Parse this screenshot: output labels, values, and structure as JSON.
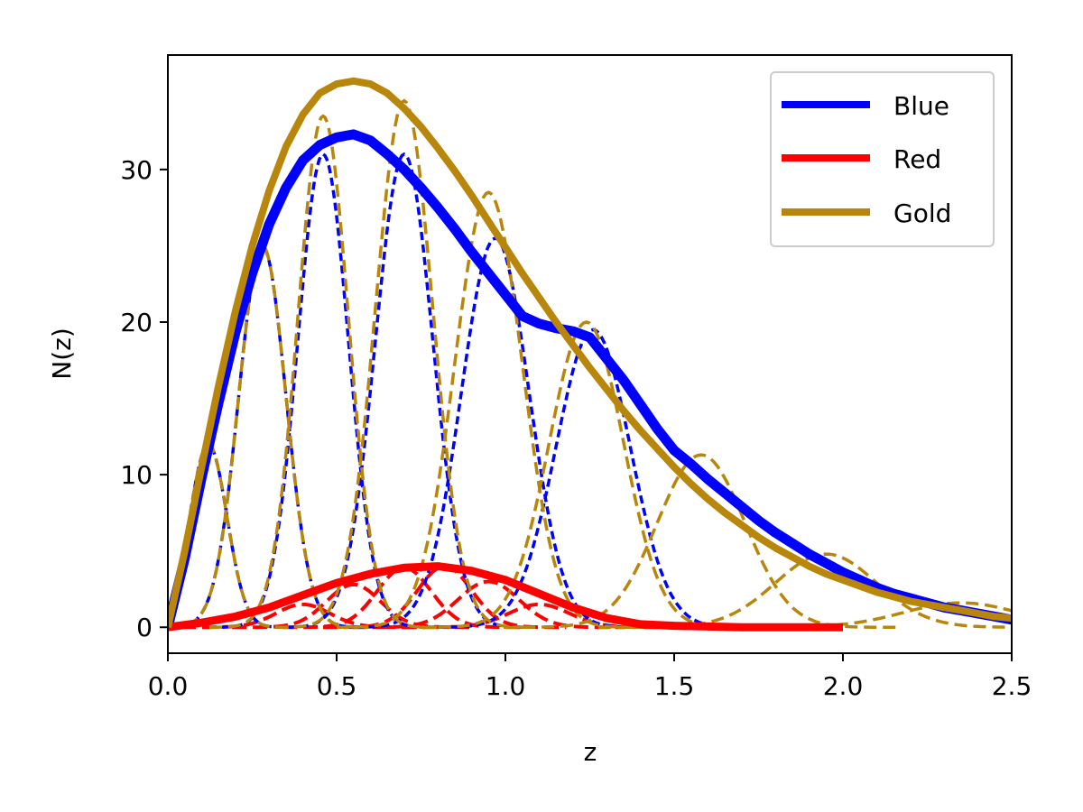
{
  "chart_data": {
    "type": "line",
    "xlabel": "z",
    "ylabel": "N(z)",
    "xlim": [
      0.0,
      2.5
    ],
    "ylim": [
      -1.7,
      37.5
    ],
    "x_ticks": [
      0.0,
      0.5,
      1.0,
      1.5,
      2.0,
      2.5
    ],
    "x_tick_labels": [
      "0.0",
      "0.5",
      "1.0",
      "1.5",
      "2.0",
      "2.5"
    ],
    "y_ticks": [
      0,
      10,
      20,
      30
    ],
    "y_tick_labels": [
      "0",
      "10",
      "20",
      "30"
    ],
    "grid": false,
    "legend_position": "top-right",
    "series": [
      {
        "name": "Blue",
        "color": "#0000ff",
        "style": "solid",
        "x": [
          0.0,
          0.05,
          0.1,
          0.15,
          0.2,
          0.25,
          0.3,
          0.35,
          0.4,
          0.45,
          0.5,
          0.55,
          0.6,
          0.65,
          0.7,
          0.75,
          0.8,
          0.85,
          0.9,
          0.95,
          1.0,
          1.05,
          1.1,
          1.15,
          1.2,
          1.25,
          1.3,
          1.35,
          1.4,
          1.45,
          1.5,
          1.55,
          1.6,
          1.65,
          1.7,
          1.75,
          1.8,
          1.85,
          1.9,
          1.95,
          2.0,
          2.05,
          2.1,
          2.15,
          2.2,
          2.25,
          2.3,
          2.35,
          2.4,
          2.45,
          2.5
        ],
        "y": [
          0.0,
          4.5,
          9.8,
          14.7,
          19.3,
          23.2,
          26.4,
          28.8,
          30.6,
          31.6,
          32.1,
          32.3,
          31.9,
          31.0,
          30.0,
          28.8,
          27.5,
          26.1,
          24.6,
          23.2,
          21.8,
          20.4,
          19.9,
          19.6,
          19.4,
          19.0,
          17.6,
          16.2,
          14.6,
          13.0,
          11.6,
          10.7,
          9.7,
          8.8,
          7.9,
          7.0,
          6.2,
          5.5,
          4.8,
          4.2,
          3.6,
          3.1,
          2.6,
          2.2,
          1.9,
          1.6,
          1.3,
          1.1,
          0.9,
          0.7,
          0.5
        ]
      },
      {
        "name": "Red",
        "color": "#ff0000",
        "style": "solid",
        "x": [
          0.0,
          0.1,
          0.2,
          0.3,
          0.4,
          0.5,
          0.6,
          0.7,
          0.8,
          0.9,
          1.0,
          1.1,
          1.2,
          1.3,
          1.4,
          1.5,
          1.6,
          1.7,
          1.8,
          1.9,
          2.0
        ],
        "y": [
          0.0,
          0.3,
          0.7,
          1.3,
          2.1,
          2.9,
          3.5,
          3.9,
          4.0,
          3.7,
          3.1,
          2.2,
          1.3,
          0.6,
          0.2,
          0.1,
          0.05,
          0.0,
          0.0,
          0.0,
          0.0
        ]
      },
      {
        "name": "Gold",
        "color": "#b8860b",
        "style": "solid",
        "x": [
          0.0,
          0.05,
          0.1,
          0.15,
          0.2,
          0.25,
          0.3,
          0.35,
          0.4,
          0.45,
          0.5,
          0.55,
          0.6,
          0.65,
          0.7,
          0.75,
          0.8,
          0.85,
          0.9,
          0.95,
          1.0,
          1.05,
          1.1,
          1.15,
          1.2,
          1.25,
          1.3,
          1.35,
          1.4,
          1.45,
          1.5,
          1.55,
          1.6,
          1.65,
          1.7,
          1.75,
          1.8,
          1.85,
          1.9,
          1.95,
          2.0,
          2.05,
          2.1,
          2.15,
          2.2,
          2.25,
          2.3,
          2.35,
          2.4,
          2.45,
          2.5
        ],
        "y": [
          0.0,
          5.0,
          10.5,
          15.8,
          20.7,
          25.0,
          28.6,
          31.5,
          33.6,
          35.0,
          35.6,
          35.8,
          35.6,
          35.0,
          34.0,
          32.8,
          31.4,
          29.9,
          28.3,
          26.6,
          24.9,
          23.2,
          21.6,
          20.0,
          18.5,
          17.0,
          15.6,
          14.2,
          12.9,
          11.7,
          10.5,
          9.4,
          8.4,
          7.5,
          6.7,
          5.9,
          5.2,
          4.6,
          4.0,
          3.5,
          3.1,
          2.7,
          2.3,
          2.0,
          1.7,
          1.5,
          1.3,
          1.1,
          0.9,
          0.7,
          0.6
        ]
      }
    ],
    "component_bins": {
      "blue": [
        {
          "mu": 0.12,
          "sigma": 0.055,
          "amp": 12.0
        },
        {
          "mu": 0.28,
          "sigma": 0.07,
          "amp": 25.0
        },
        {
          "mu": 0.46,
          "sigma": 0.075,
          "amp": 31.0
        },
        {
          "mu": 0.7,
          "sigma": 0.085,
          "amp": 31.0
        },
        {
          "mu": 0.97,
          "sigma": 0.1,
          "amp": 25.5
        },
        {
          "mu": 1.26,
          "sigma": 0.11,
          "amp": 19.5
        }
      ],
      "gold": [
        {
          "mu": 0.12,
          "sigma": 0.055,
          "amp": 12.0
        },
        {
          "mu": 0.28,
          "sigma": 0.07,
          "amp": 25.0
        },
        {
          "mu": 0.46,
          "sigma": 0.075,
          "amp": 33.5
        },
        {
          "mu": 0.7,
          "sigma": 0.085,
          "amp": 34.5
        },
        {
          "mu": 0.95,
          "sigma": 0.1,
          "amp": 28.5
        },
        {
          "mu": 1.24,
          "sigma": 0.11,
          "amp": 20.0
        },
        {
          "mu": 1.58,
          "sigma": 0.13,
          "amp": 11.3
        },
        {
          "mu": 1.95,
          "sigma": 0.15,
          "amp": 4.8
        },
        {
          "mu": 2.35,
          "sigma": 0.17,
          "amp": 1.6
        }
      ],
      "red": [
        {
          "mu": 0.4,
          "sigma": 0.08,
          "amp": 1.5
        },
        {
          "mu": 0.55,
          "sigma": 0.08,
          "amp": 2.8
        },
        {
          "mu": 0.7,
          "sigma": 0.08,
          "amp": 3.9
        },
        {
          "mu": 0.82,
          "sigma": 0.08,
          "amp": 4.0
        },
        {
          "mu": 0.95,
          "sigma": 0.09,
          "amp": 3.0
        },
        {
          "mu": 1.1,
          "sigma": 0.09,
          "amp": 1.5
        }
      ]
    }
  }
}
